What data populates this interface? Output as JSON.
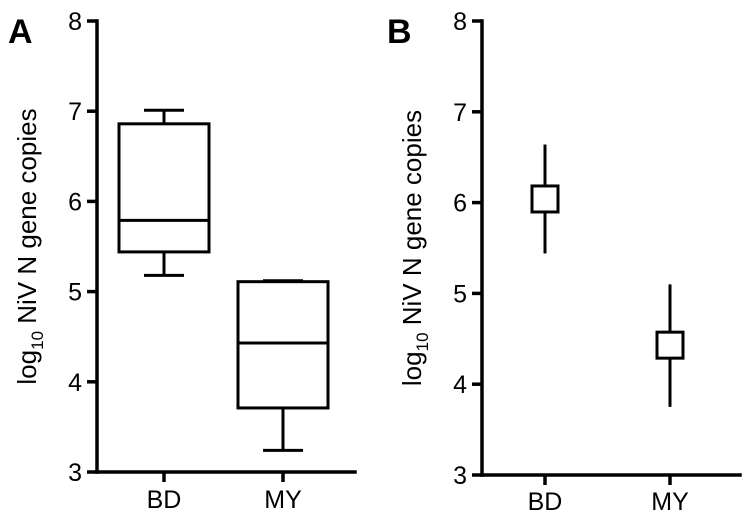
{
  "chart_data": [
    {
      "panel": "A",
      "type": "box",
      "ylabel": {
        "prefix": "log",
        "sub": "10",
        "suffix": " NiV N gene copies"
      },
      "ylim": [
        3,
        8
      ],
      "yticks": [
        3,
        4,
        5,
        6,
        7,
        8
      ],
      "categories": [
        "BD",
        "MY"
      ],
      "boxes": [
        {
          "category": "BD",
          "min": 5.18,
          "q1": 5.44,
          "median": 5.79,
          "q3": 6.86,
          "max": 7.01
        },
        {
          "category": "MY",
          "min": 3.24,
          "q1": 3.71,
          "median": 4.43,
          "q3": 5.11,
          "max": 5.12
        }
      ]
    },
    {
      "panel": "B",
      "type": "errorbar",
      "ylabel": {
        "prefix": "log",
        "sub": "10",
        "suffix": " NiV N gene copies"
      },
      "ylim": [
        3,
        8
      ],
      "yticks": [
        3,
        4,
        5,
        6,
        7,
        8
      ],
      "categories": [
        "BD",
        "MY"
      ],
      "points": [
        {
          "category": "BD",
          "mean": 6.04,
          "lower": 5.44,
          "upper": 6.64
        },
        {
          "category": "MY",
          "mean": 4.43,
          "lower": 3.75,
          "upper": 5.1
        }
      ]
    }
  ]
}
